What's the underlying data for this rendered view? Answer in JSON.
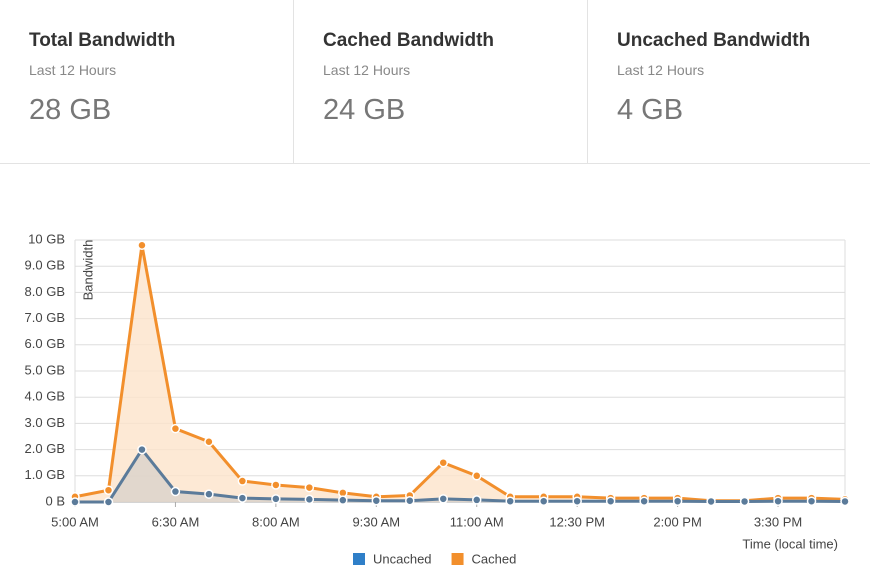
{
  "stats": [
    {
      "title": "Total Bandwidth",
      "subtitle": "Last 12 Hours",
      "value": "28 GB"
    },
    {
      "title": "Cached Bandwidth",
      "subtitle": "Last 12 Hours",
      "value": "24 GB"
    },
    {
      "title": "Uncached Bandwidth",
      "subtitle": "Last 12 Hours",
      "value": "4 GB"
    }
  ],
  "chart_data": {
    "type": "area-line",
    "categories": [
      "5:00 AM",
      null,
      null,
      "6:30 AM",
      null,
      null,
      "8:00 AM",
      null,
      null,
      "9:30 AM",
      null,
      null,
      "11:00 AM",
      null,
      null,
      "12:30 PM",
      null,
      null,
      "2:00 PM",
      null,
      null,
      "3:30 PM",
      null,
      null
    ],
    "series": [
      {
        "name": "Uncached",
        "color": "#5b7b9a",
        "legend_color": "#2f7fc8",
        "fill": "#d9d2cb",
        "values": [
          0,
          0,
          2.0,
          0.4,
          0.3,
          0.15,
          0.12,
          0.1,
          0.07,
          0.05,
          0.05,
          0.12,
          0.08,
          0.03,
          0.03,
          0.03,
          0.03,
          0.03,
          0.03,
          0.02,
          0.02,
          0.03,
          0.03,
          0.02
        ]
      },
      {
        "name": "Cached",
        "color": "#f28f2c",
        "legend_color": "#f28f2c",
        "fill": "#fce4cb",
        "values": [
          0.2,
          0.45,
          9.8,
          2.8,
          2.3,
          0.8,
          0.65,
          0.55,
          0.35,
          0.2,
          0.25,
          1.5,
          1.0,
          0.2,
          0.2,
          0.2,
          0.15,
          0.15,
          0.15,
          0.05,
          0.05,
          0.15,
          0.15,
          0.1
        ]
      }
    ],
    "ylim": [
      0,
      10
    ],
    "yticks": [
      {
        "value": 0,
        "label": "0 B"
      },
      {
        "value": 1,
        "label": "1.0 GB"
      },
      {
        "value": 2,
        "label": "2.0 GB"
      },
      {
        "value": 3,
        "label": "3.0 GB"
      },
      {
        "value": 4,
        "label": "4.0 GB"
      },
      {
        "value": 5,
        "label": "5.0 GB"
      },
      {
        "value": 6,
        "label": "6.0 GB"
      },
      {
        "value": 7,
        "label": "7.0 GB"
      },
      {
        "value": 8,
        "label": "8.0 GB"
      },
      {
        "value": 9,
        "label": "9.0 GB"
      },
      {
        "value": 10,
        "label": "10 GB"
      }
    ],
    "ylabel": "Bandwidth",
    "xlabel": "Time (local time)",
    "grid": true,
    "legend": "bottom"
  }
}
